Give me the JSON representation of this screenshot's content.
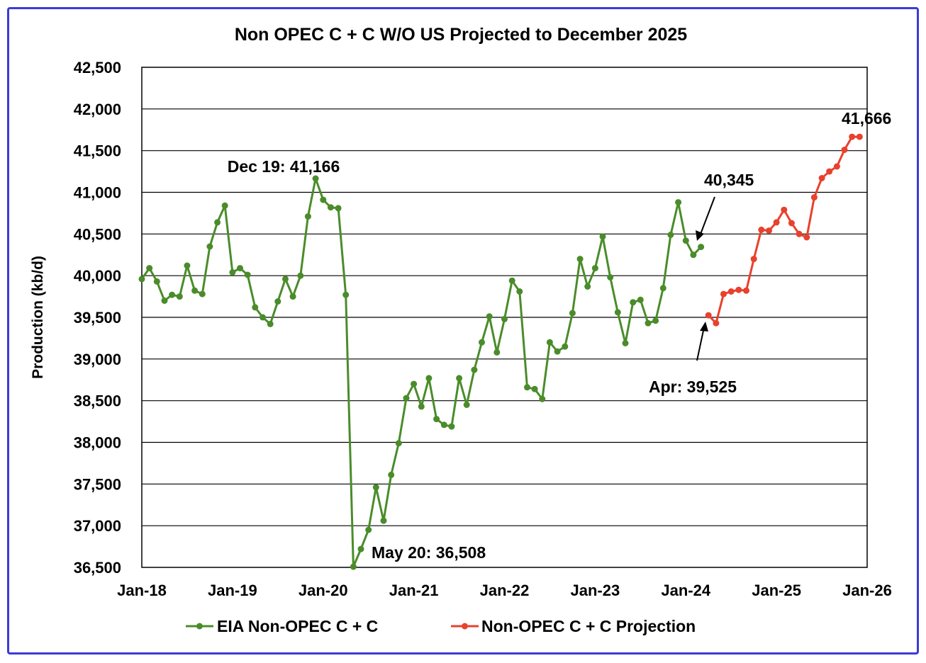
{
  "chart_data": {
    "type": "line",
    "title": "Non OPEC C + C W/O US Projected to December 2025",
    "xlabel": "",
    "ylabel": "Production (kb/d)",
    "x_start": "Jan-18",
    "ylim": [
      36500,
      42500
    ],
    "y_ticks": [
      "36,500",
      "37,000",
      "37,500",
      "38,000",
      "38,500",
      "39,000",
      "39,500",
      "40,000",
      "40,500",
      "41,000",
      "41,500",
      "42,000",
      "42,500"
    ],
    "x_ticks": [
      "Jan-18",
      "Jan-19",
      "Jan-20",
      "Jan-21",
      "Jan-22",
      "Jan-23",
      "Jan-24",
      "Jan-25",
      "Jan-26"
    ],
    "grid": "horizontal",
    "legend_position": "bottom",
    "series": [
      {
        "name": "EIA Non-OPEC C + C",
        "color": "#4a8c2a",
        "start": "Jan-18",
        "values": [
          39960,
          40090,
          39930,
          39700,
          39770,
          39750,
          40120,
          39820,
          39780,
          40350,
          40640,
          40840,
          40040,
          40090,
          40010,
          39620,
          39500,
          39420,
          39690,
          39960,
          39750,
          40000,
          40710,
          41166,
          40910,
          40820,
          40810,
          39770,
          36508,
          36720,
          36950,
          37460,
          37060,
          37610,
          37990,
          38530,
          38700,
          38430,
          38770,
          38280,
          38210,
          38190,
          38770,
          38450,
          38870,
          39200,
          39510,
          39080,
          39480,
          39940,
          39810,
          38660,
          38640,
          38520,
          39200,
          39090,
          39150,
          39550,
          40200,
          39870,
          40090,
          40470,
          39980,
          39560,
          39190,
          39680,
          39710,
          39430,
          39460,
          39850,
          40490,
          40880,
          40420,
          40250,
          40345
        ]
      },
      {
        "name": "Non-OPEC C + C Projection",
        "color": "#e8412c",
        "start": "Apr-24",
        "values": [
          39525,
          39430,
          39780,
          39810,
          39830,
          39820,
          40200,
          40550,
          40540,
          40640,
          40790,
          40630,
          40500,
          40460,
          40940,
          41170,
          41250,
          41310,
          41510,
          41666,
          41666
        ]
      }
    ],
    "annotations": {
      "dec19": "Dec 19: 41,166",
      "may20": "May 20: 36,508",
      "last_eia": "40,345",
      "apr": "Apr: 39,525",
      "proj_end": "41,666"
    }
  }
}
